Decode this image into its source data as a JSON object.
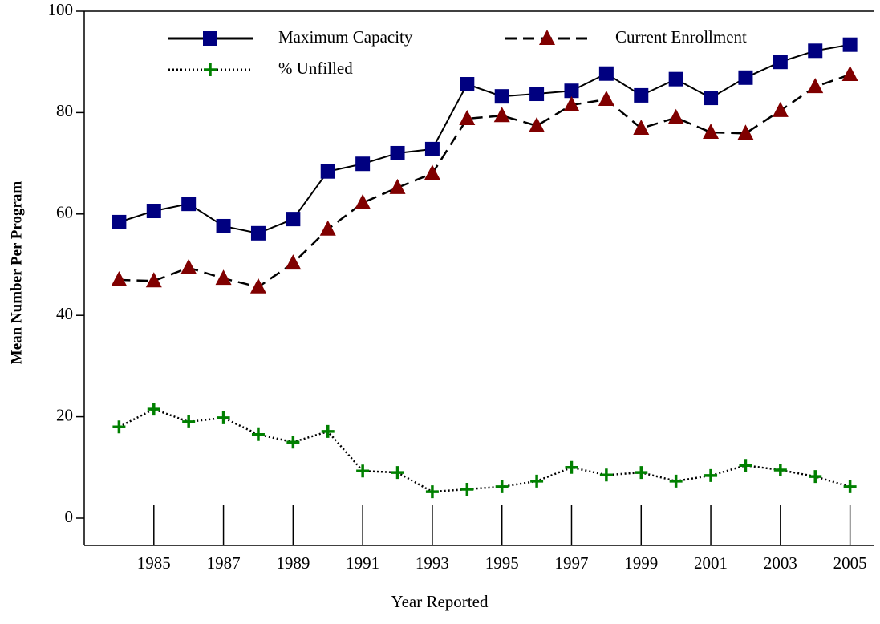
{
  "chart_data": {
    "type": "line",
    "x_label": "Year Reported",
    "y_label": "Mean Number Per Program",
    "x": [
      1984,
      1985,
      1986,
      1987,
      1988,
      1989,
      1990,
      1991,
      1992,
      1993,
      1994,
      1995,
      1996,
      1997,
      1998,
      1999,
      2000,
      2001,
      2002,
      2003,
      2004,
      2005
    ],
    "series": [
      {
        "name": "Maximum Capacity",
        "color": "#000080",
        "marker": "square",
        "dash": "solid",
        "values": [
          58.4,
          60.6,
          62.0,
          57.6,
          56.2,
          59.0,
          68.4,
          69.9,
          72.0,
          72.8,
          85.6,
          83.2,
          83.7,
          84.3,
          87.7,
          83.4,
          86.6,
          82.9,
          86.9,
          90.0,
          92.2,
          93.4
        ]
      },
      {
        "name": "Current Enrollment",
        "color": "#800000",
        "marker": "triangle",
        "dash": "dashed",
        "values": [
          47.0,
          46.8,
          49.4,
          47.3,
          45.6,
          50.3,
          57.0,
          62.2,
          65.2,
          68.0,
          78.8,
          79.4,
          77.4,
          81.5,
          82.6,
          76.9,
          79.0,
          76.1,
          75.9,
          80.4,
          85.1,
          87.5
        ]
      },
      {
        "name": "% Unfilled",
        "color": "#008000",
        "marker": "plus",
        "dash": "dotted",
        "values": [
          18.0,
          21.5,
          19.0,
          19.8,
          16.5,
          15.0,
          17.1,
          9.3,
          9.0,
          5.2,
          5.7,
          6.2,
          7.3,
          10.0,
          8.5,
          9.0,
          7.3,
          8.4,
          10.4,
          9.5,
          8.2,
          6.2
        ]
      }
    ],
    "xlim": [
      1983,
      2005.7
    ],
    "xticks": [
      1985,
      1987,
      1989,
      1991,
      1993,
      1995,
      1997,
      1999,
      2001,
      2003,
      2005
    ],
    "ylim": [
      0,
      100
    ],
    "yticks": [
      0,
      20,
      40,
      60,
      80,
      100
    ],
    "legend": "top"
  }
}
